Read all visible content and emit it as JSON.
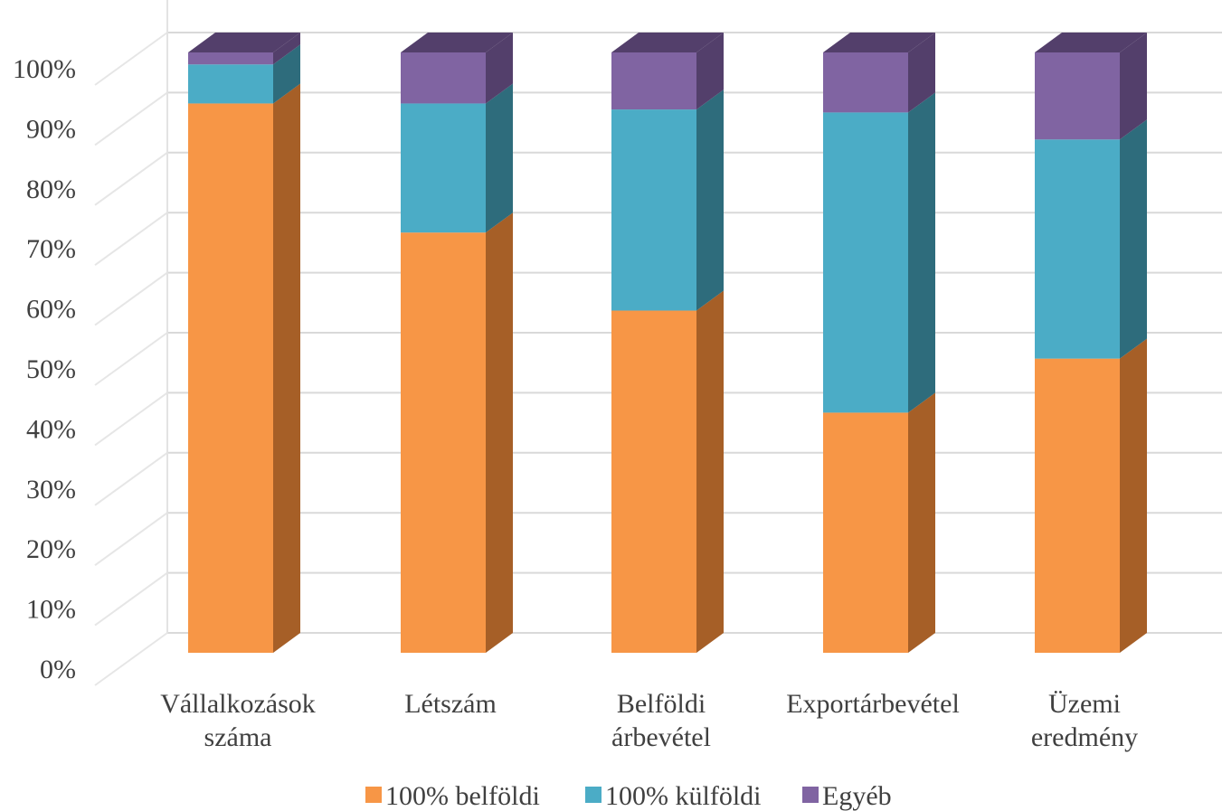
{
  "chart_data": {
    "type": "bar",
    "stacked": true,
    "percent_stacked": true,
    "style": "3d-column",
    "categories": [
      [
        "Vállalkozások",
        "száma"
      ],
      [
        "Létszám"
      ],
      [
        "Belföldi",
        "árbevétel"
      ],
      [
        "Exportárbevétel"
      ],
      [
        "Üzemi",
        "eredmény"
      ]
    ],
    "series": [
      {
        "name": "100% belföldi",
        "color": "#F79646",
        "side_color": "#A65F27",
        "values": [
          91.5,
          70,
          57,
          40,
          49
        ]
      },
      {
        "name": "100% külföldi",
        "color": "#4BACC6",
        "side_color": "#2E6C7C",
        "values": [
          6.5,
          21.5,
          33.5,
          50,
          36.5
        ]
      },
      {
        "name": "Egyéb",
        "color": "#8064A2",
        "side_color": "#533F6B",
        "values": [
          2,
          8.5,
          9.5,
          10,
          14.5
        ]
      }
    ],
    "yticks": [
      "0%",
      "10%",
      "20%",
      "30%",
      "40%",
      "50%",
      "60%",
      "70%",
      "80%",
      "90%",
      "100%"
    ],
    "ylim": [
      0,
      100
    ],
    "grid": true,
    "legend_position": "bottom"
  }
}
